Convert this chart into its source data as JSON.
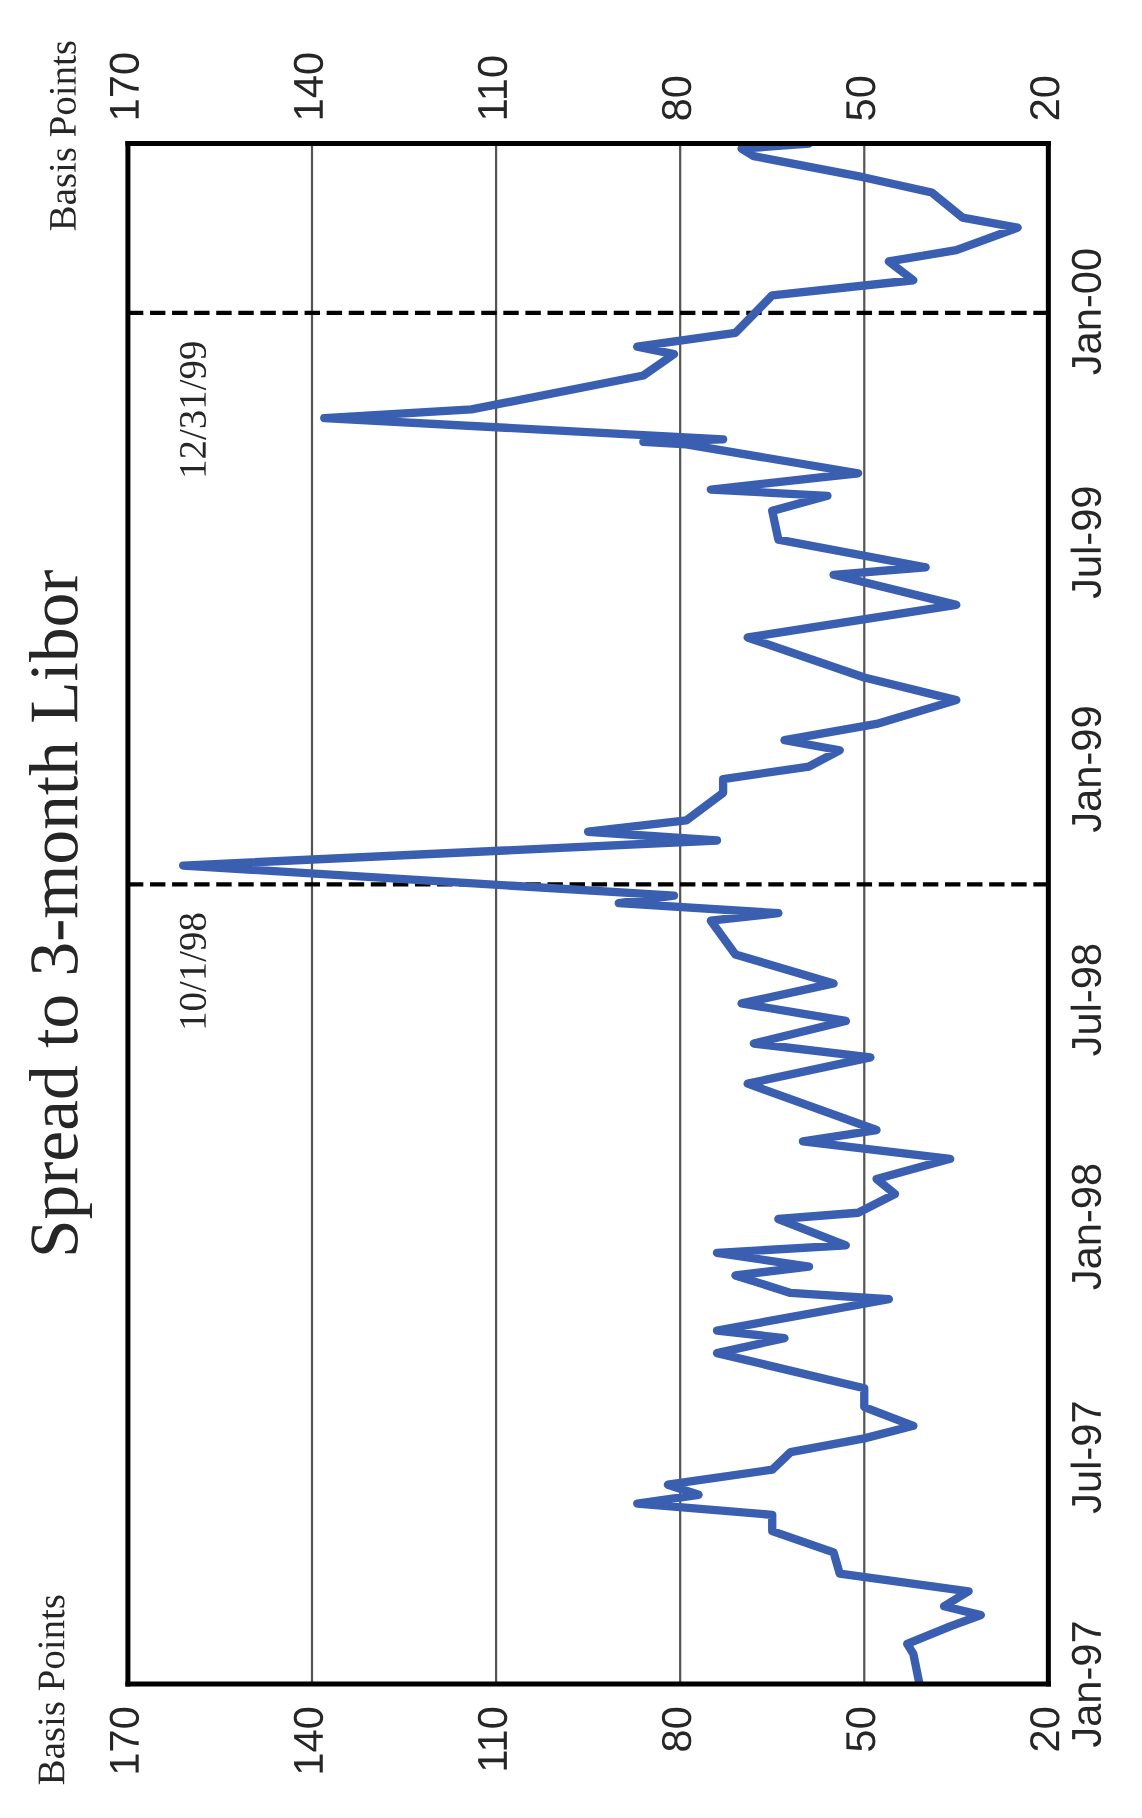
{
  "chart_data": {
    "type": "line",
    "title": "Spread to 3-month Libor",
    "annotations": [
      "Basis Points",
      "Basis Points"
    ],
    "orientation": "horizontal",
    "x": [
      "1997-01-01",
      "1997-01-25",
      "1997-02-02",
      "1997-02-16",
      "1997-02-25",
      "1997-03-04",
      "1997-03-16",
      "1997-03-30",
      "1997-04-16",
      "1997-05-03",
      "1997-05-16",
      "1997-05-25",
      "1997-06-01",
      "1997-06-09",
      "1997-06-21",
      "1997-07-05",
      "1997-07-16",
      "1997-07-26",
      "1997-08-10",
      "1997-08-25",
      "1997-09-22",
      "1997-10-04",
      "1997-10-10",
      "1997-11-04",
      "1997-11-09",
      "1997-11-23",
      "1997-11-30",
      "1997-12-11",
      "1997-12-17",
      "1998-01-07",
      "1998-01-12",
      "1998-01-27",
      "1998-02-08",
      "1998-02-24",
      "1998-03-10",
      "1998-03-19",
      "1998-04-25",
      "1998-05-16",
      "1998-05-27",
      "1998-06-14",
      "1998-06-28",
      "1998-07-14",
      "1998-08-06",
      "1998-09-02",
      "1998-09-08",
      "1998-09-16",
      "1998-09-22",
      "1998-10-16",
      "1998-11-05",
      "1998-11-12",
      "1998-11-21",
      "1998-12-13",
      "1998-12-24",
      "1999-01-03",
      "1999-01-16",
      "1999-01-24",
      "1999-02-06",
      "1999-02-25",
      "1999-03-15",
      "1999-04-16",
      "1999-05-12",
      "1999-06-05",
      "1999-06-11",
      "1999-07-03",
      "1999-07-26",
      "1999-08-07",
      "1999-08-12",
      "1999-08-25",
      "1999-09-17",
      "1999-09-19",
      "1999-09-21",
      "1999-10-08",
      "1999-10-15",
      "1999-11-11",
      "1999-11-28",
      "1999-12-04",
      "1999-12-15",
      "2000-01-14",
      "2000-01-26",
      "2000-02-10",
      "2000-02-19",
      "2000-03-08",
      "2000-03-16",
      "2000-04-05",
      "2000-04-17",
      "2000-05-04",
      "2000-05-10",
      "2000-05-14"
    ],
    "series": [
      {
        "color": "#3a5fb0",
        "values": [
          41,
          42,
          43,
          36,
          31,
          37,
          33,
          54,
          55,
          65,
          65,
          87,
          77,
          82,
          65,
          62,
          50,
          42,
          50,
          50,
          74,
          63,
          74,
          46,
          62,
          71,
          59,
          74,
          53,
          64,
          51,
          45,
          48,
          36,
          60,
          48,
          69,
          49,
          68,
          53,
          70,
          55,
          71,
          75,
          64,
          90,
          81,
          161,
          74,
          95,
          79,
          73,
          73,
          59,
          54,
          63,
          48,
          35,
          50,
          69,
          35,
          55,
          40,
          64,
          65,
          56,
          75,
          51,
          79,
          86,
          73,
          138,
          114,
          86,
          81,
          87,
          71,
          65,
          42,
          46,
          35,
          25,
          34,
          39,
          50,
          68,
          70,
          59
        ]
      }
    ],
    "ylim": [
      "1997-01-01",
      "2000-05-14"
    ],
    "yticks": [
      {
        "value": "1997-01-01",
        "label": "Jan-97"
      },
      {
        "value": "1997-07-01",
        "label": "Jul-97"
      },
      {
        "value": "1998-01-01",
        "label": "Jan-98"
      },
      {
        "value": "1998-07-01",
        "label": "Jul-98"
      },
      {
        "value": "1999-01-01",
        "label": "Jan-99"
      },
      {
        "value": "1999-07-01",
        "label": "Jul-99"
      },
      {
        "value": "2000-01-01",
        "label": "Jan-00"
      }
    ],
    "xlim": [
      170,
      20
    ],
    "xticks": [
      170,
      140,
      110,
      80,
      50,
      20
    ],
    "x2lim": [
      170,
      20
    ],
    "x2ticks": [
      170,
      140,
      110,
      80,
      50,
      20
    ],
    "ref_lines": [
      {
        "axis": "y",
        "value": "1998-10-01",
        "label": "10/1/98",
        "line_style": "dashed",
        "color": "#000000"
      },
      {
        "axis": "y",
        "value": "1999-12-31",
        "label": "12/31/99",
        "line_style": "dashed",
        "color": "#000000"
      }
    ],
    "grid": "x",
    "line_style": "solid",
    "marker": "none"
  }
}
